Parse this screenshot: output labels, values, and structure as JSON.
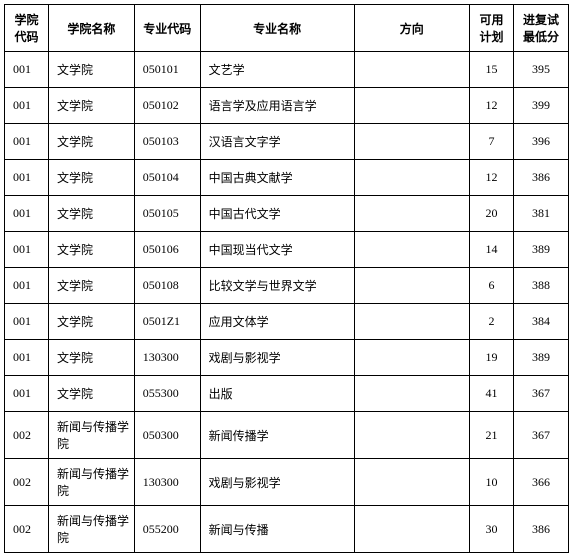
{
  "table": {
    "columns": [
      "学院代码",
      "学院名称",
      "专业代码",
      "专业名称",
      "方向",
      "可用计划",
      "进复试最低分"
    ],
    "rows": [
      {
        "college_code": "001",
        "college_name": "文学院",
        "major_code": "050101",
        "major_name": "文艺学",
        "direction": "",
        "plan": "15",
        "score": "395"
      },
      {
        "college_code": "001",
        "college_name": "文学院",
        "major_code": "050102",
        "major_name": "语言学及应用语言学",
        "direction": "",
        "plan": "12",
        "score": "399"
      },
      {
        "college_code": "001",
        "college_name": "文学院",
        "major_code": "050103",
        "major_name": "汉语言文字学",
        "direction": "",
        "plan": "7",
        "score": "396"
      },
      {
        "college_code": "001",
        "college_name": "文学院",
        "major_code": "050104",
        "major_name": "中国古典文献学",
        "direction": "",
        "plan": "12",
        "score": "386"
      },
      {
        "college_code": "001",
        "college_name": "文学院",
        "major_code": "050105",
        "major_name": "中国古代文学",
        "direction": "",
        "plan": "20",
        "score": "381"
      },
      {
        "college_code": "001",
        "college_name": "文学院",
        "major_code": "050106",
        "major_name": "中国现当代文学",
        "direction": "",
        "plan": "14",
        "score": "389"
      },
      {
        "college_code": "001",
        "college_name": "文学院",
        "major_code": "050108",
        "major_name": "比较文学与世界文学",
        "direction": "",
        "plan": "6",
        "score": "388"
      },
      {
        "college_code": "001",
        "college_name": "文学院",
        "major_code": "0501Z1",
        "major_name": "应用文体学",
        "direction": "",
        "plan": "2",
        "score": "384"
      },
      {
        "college_code": "001",
        "college_name": "文学院",
        "major_code": "130300",
        "major_name": "戏剧与影视学",
        "direction": "",
        "plan": "19",
        "score": "389"
      },
      {
        "college_code": "001",
        "college_name": "文学院",
        "major_code": "055300",
        "major_name": "出版",
        "direction": "",
        "plan": "41",
        "score": "367"
      },
      {
        "college_code": "002",
        "college_name": "新闻与传播学院",
        "major_code": "050300",
        "major_name": "新闻传播学",
        "direction": "",
        "plan": "21",
        "score": "367"
      },
      {
        "college_code": "002",
        "college_name": "新闻与传播学院",
        "major_code": "130300",
        "major_name": "戏剧与影视学",
        "direction": "",
        "plan": "10",
        "score": "366"
      },
      {
        "college_code": "002",
        "college_name": "新闻与传播学院",
        "major_code": "055200",
        "major_name": "新闻与传播",
        "direction": "",
        "plan": "30",
        "score": "386"
      }
    ]
  }
}
